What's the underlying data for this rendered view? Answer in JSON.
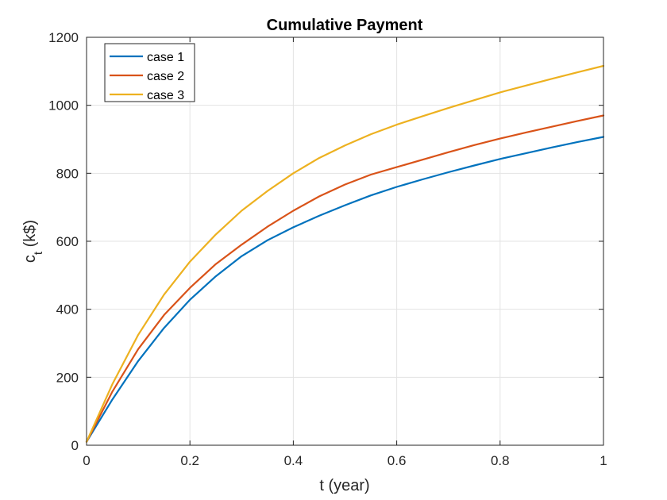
{
  "chart_data": {
    "type": "line",
    "title": "Cumulative Payment",
    "xlabel": "t (year)",
    "ylabel_main": "c",
    "ylabel_sub": "t",
    "ylabel_unit": " (k$)",
    "xlim": [
      0,
      1
    ],
    "ylim": [
      0,
      1200
    ],
    "xticks": [
      "0",
      "0.2",
      "0.4",
      "0.6",
      "0.8",
      "1"
    ],
    "xtick_values": [
      0,
      0.2,
      0.4,
      0.6,
      0.8,
      1
    ],
    "yticks": [
      "0",
      "200",
      "400",
      "600",
      "800",
      "1000",
      "1200"
    ],
    "ytick_values": [
      0,
      200,
      400,
      600,
      800,
      1000,
      1200
    ],
    "grid": true,
    "legend_position": "top-left",
    "x": [
      0,
      0.05,
      0.1,
      0.15,
      0.2,
      0.25,
      0.3,
      0.35,
      0.4,
      0.45,
      0.5,
      0.55,
      0.6,
      0.65,
      0.7,
      0.75,
      0.8,
      0.85,
      0.9,
      0.95,
      1
    ],
    "series": [
      {
        "name": "case 1",
        "color": "#0072BD",
        "values": [
          10,
          135,
          248,
          345,
          428,
          497,
          556,
          603,
          641,
          675,
          706,
          735,
          760,
          782,
          803,
          823,
          842,
          859,
          876,
          892,
          907
        ]
      },
      {
        "name": "case 2",
        "color": "#D95319",
        "values": [
          10,
          158,
          283,
          383,
          463,
          533,
          590,
          643,
          690,
          732,
          767,
          796,
          818,
          840,
          862,
          883,
          902,
          920,
          937,
          954,
          970
        ]
      },
      {
        "name": "case 3",
        "color": "#EDB120",
        "values": [
          10,
          180,
          325,
          443,
          540,
          620,
          690,
          748,
          800,
          845,
          882,
          915,
          943,
          968,
          992,
          1015,
          1038,
          1058,
          1078,
          1097,
          1116
        ]
      }
    ]
  }
}
